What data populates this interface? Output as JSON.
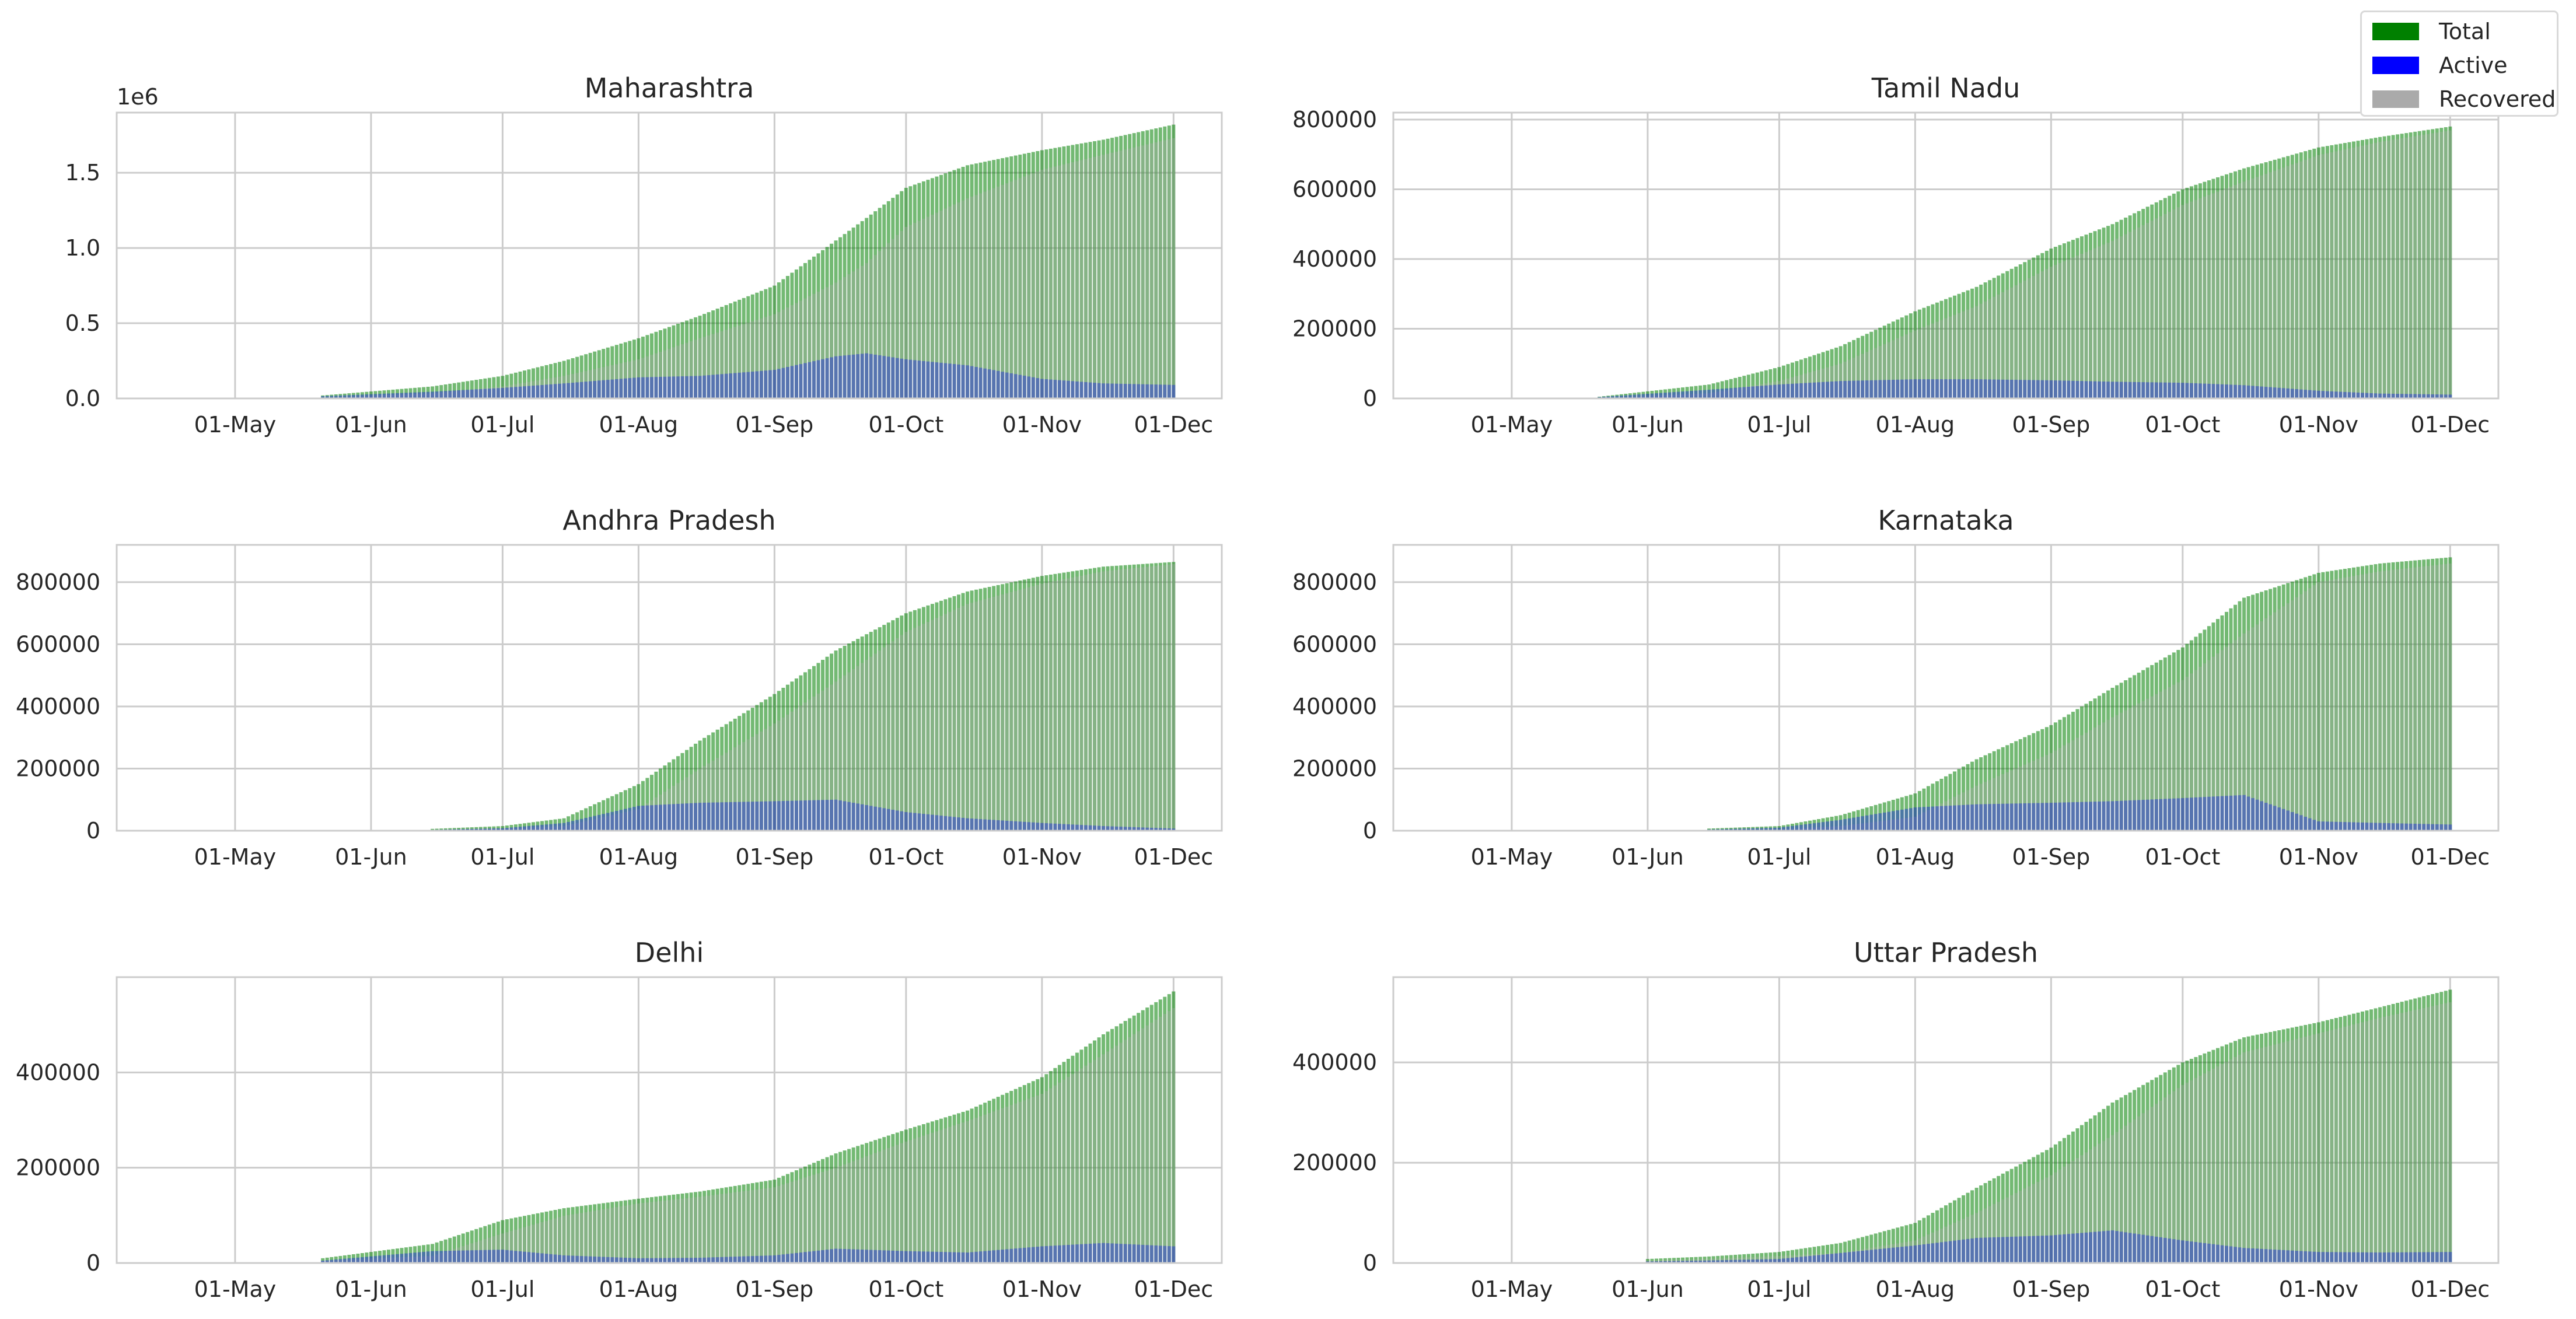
{
  "legend": {
    "items": [
      {
        "label": "Total",
        "color": "#008000"
      },
      {
        "label": "Active",
        "color": "#0000ff"
      },
      {
        "label": "Recovered",
        "color": "#aaaaaa"
      }
    ]
  },
  "chart_data": [
    {
      "type": "bar",
      "title": "Maharashtra",
      "offset_text": "1e6",
      "x_tick_labels": [
        "01-May",
        "01-Jun",
        "01-Jul",
        "01-Aug",
        "01-Sep",
        "01-Oct",
        "01-Nov",
        "01-Dec"
      ],
      "y_tick_labels": [
        "0.0",
        "0.5",
        "1.0",
        "1.5"
      ],
      "y_tick_values": [
        0,
        500000,
        1000000,
        1500000
      ],
      "ylim": [
        0,
        1900000
      ],
      "grid": true,
      "x_dates": [
        "2020-05-21",
        "2020-06-15",
        "2020-07-01",
        "2020-07-15",
        "2020-08-01",
        "2020-08-15",
        "2020-09-01",
        "2020-09-15",
        "2020-09-22",
        "2020-10-01",
        "2020-10-15",
        "2020-11-01",
        "2020-11-15",
        "2020-12-01"
      ],
      "series": [
        {
          "name": "Total",
          "values": [
            20000,
            80000,
            150000,
            250000,
            400000,
            550000,
            750000,
            1050000,
            1200000,
            1400000,
            1550000,
            1650000,
            1720000,
            1820000
          ]
        },
        {
          "name": "Active",
          "values": [
            15000,
            45000,
            70000,
            100000,
            140000,
            150000,
            190000,
            280000,
            300000,
            260000,
            220000,
            130000,
            100000,
            90000
          ]
        },
        {
          "name": "Recovered",
          "values": [
            5000,
            35000,
            80000,
            150000,
            260000,
            400000,
            560000,
            770000,
            900000,
            1140000,
            1330000,
            1520000,
            1620000,
            1730000
          ]
        }
      ]
    },
    {
      "type": "bar",
      "title": "Tamil Nadu",
      "offset_text": "",
      "x_tick_labels": [
        "01-May",
        "01-Jun",
        "01-Jul",
        "01-Aug",
        "01-Sep",
        "01-Oct",
        "01-Nov",
        "01-Dec"
      ],
      "y_tick_labels": [
        "0",
        "200000",
        "400000",
        "600000",
        "800000"
      ],
      "y_tick_values": [
        0,
        200000,
        400000,
        600000,
        800000
      ],
      "ylim": [
        0,
        820000
      ],
      "grid": true,
      "x_dates": [
        "2020-05-21",
        "2020-06-15",
        "2020-07-01",
        "2020-07-15",
        "2020-08-01",
        "2020-08-15",
        "2020-09-01",
        "2020-09-15",
        "2020-10-01",
        "2020-10-15",
        "2020-11-01",
        "2020-11-15",
        "2020-12-01"
      ],
      "series": [
        {
          "name": "Total",
          "values": [
            5000,
            40000,
            90000,
            150000,
            250000,
            320000,
            430000,
            500000,
            600000,
            660000,
            720000,
            750000,
            780000
          ]
        },
        {
          "name": "Active",
          "values": [
            4000,
            25000,
            40000,
            50000,
            55000,
            55000,
            52000,
            48000,
            45000,
            38000,
            22000,
            14000,
            11000
          ]
        },
        {
          "name": "Recovered",
          "values": [
            1000,
            15000,
            50000,
            100000,
            195000,
            265000,
            378000,
            452000,
            555000,
            622000,
            698000,
            736000,
            769000
          ]
        }
      ]
    },
    {
      "type": "bar",
      "title": "Andhra Pradesh",
      "offset_text": "",
      "x_tick_labels": [
        "01-May",
        "01-Jun",
        "01-Jul",
        "01-Aug",
        "01-Sep",
        "01-Oct",
        "01-Nov",
        "01-Dec"
      ],
      "y_tick_labels": [
        "0",
        "200000",
        "400000",
        "600000",
        "800000"
      ],
      "y_tick_values": [
        0,
        200000,
        400000,
        600000,
        800000
      ],
      "ylim": [
        0,
        920000
      ],
      "grid": true,
      "x_dates": [
        "2020-06-15",
        "2020-07-01",
        "2020-07-15",
        "2020-08-01",
        "2020-08-15",
        "2020-09-01",
        "2020-09-15",
        "2020-10-01",
        "2020-10-15",
        "2020-11-01",
        "2020-11-15",
        "2020-12-01"
      ],
      "series": [
        {
          "name": "Total",
          "values": [
            6000,
            15000,
            40000,
            150000,
            290000,
            440000,
            580000,
            700000,
            770000,
            820000,
            850000,
            865000
          ]
        },
        {
          "name": "Active",
          "values": [
            3000,
            8000,
            25000,
            80000,
            90000,
            95000,
            100000,
            60000,
            40000,
            25000,
            15000,
            7000
          ]
        },
        {
          "name": "Recovered",
          "values": [
            3000,
            7000,
            15000,
            70000,
            200000,
            345000,
            480000,
            640000,
            730000,
            795000,
            835000,
            858000
          ]
        }
      ]
    },
    {
      "type": "bar",
      "title": "Karnataka",
      "offset_text": "",
      "x_tick_labels": [
        "01-May",
        "01-Jun",
        "01-Jul",
        "01-Aug",
        "01-Sep",
        "01-Oct",
        "01-Nov",
        "01-Dec"
      ],
      "y_tick_labels": [
        "0",
        "200000",
        "400000",
        "600000",
        "800000"
      ],
      "y_tick_values": [
        0,
        200000,
        400000,
        600000,
        800000
      ],
      "ylim": [
        0,
        920000
      ],
      "grid": true,
      "x_dates": [
        "2020-06-15",
        "2020-07-01",
        "2020-07-15",
        "2020-08-01",
        "2020-08-15",
        "2020-09-01",
        "2020-09-15",
        "2020-10-01",
        "2020-10-15",
        "2020-11-01",
        "2020-11-15",
        "2020-12-01"
      ],
      "series": [
        {
          "name": "Total",
          "values": [
            7000,
            15000,
            50000,
            120000,
            230000,
            340000,
            460000,
            590000,
            750000,
            830000,
            860000,
            880000
          ]
        },
        {
          "name": "Active",
          "values": [
            4000,
            10000,
            35000,
            75000,
            85000,
            90000,
            95000,
            105000,
            115000,
            30000,
            25000,
            20000
          ]
        },
        {
          "name": "Recovered",
          "values": [
            3000,
            5000,
            15000,
            45000,
            145000,
            250000,
            365000,
            485000,
            635000,
            800000,
            835000,
            860000
          ]
        }
      ]
    },
    {
      "type": "bar",
      "title": "Delhi",
      "offset_text": "",
      "x_tick_labels": [
        "01-May",
        "01-Jun",
        "01-Jul",
        "01-Aug",
        "01-Sep",
        "01-Oct",
        "01-Nov",
        "01-Dec"
      ],
      "y_tick_labels": [
        "0",
        "200000",
        "400000"
      ],
      "y_tick_values": [
        0,
        200000,
        400000
      ],
      "ylim": [
        0,
        600000
      ],
      "grid": true,
      "x_dates": [
        "2020-05-21",
        "2020-06-15",
        "2020-07-01",
        "2020-07-15",
        "2020-08-01",
        "2020-08-15",
        "2020-09-01",
        "2020-09-15",
        "2020-10-01",
        "2020-10-15",
        "2020-11-01",
        "2020-11-15",
        "2020-12-01"
      ],
      "series": [
        {
          "name": "Total",
          "values": [
            10000,
            40000,
            90000,
            115000,
            135000,
            150000,
            175000,
            230000,
            280000,
            320000,
            390000,
            480000,
            570000
          ]
        },
        {
          "name": "Active",
          "values": [
            5000,
            25000,
            28000,
            16000,
            10000,
            11000,
            16000,
            30000,
            25000,
            22000,
            35000,
            42000,
            35000
          ]
        },
        {
          "name": "Recovered",
          "values": [
            5000,
            15000,
            62000,
            99000,
            125000,
            139000,
            159000,
            200000,
            255000,
            298000,
            355000,
            438000,
            535000
          ]
        }
      ]
    },
    {
      "type": "bar",
      "title": "Uttar Pradesh",
      "offset_text": "",
      "x_tick_labels": [
        "01-May",
        "01-Jun",
        "01-Jul",
        "01-Aug",
        "01-Sep",
        "01-Oct",
        "01-Nov",
        "01-Dec"
      ],
      "y_tick_labels": [
        "0",
        "200000",
        "400000"
      ],
      "y_tick_values": [
        0,
        200000,
        400000
      ],
      "ylim": [
        0,
        570000
      ],
      "grid": true,
      "x_dates": [
        "2020-06-01",
        "2020-06-15",
        "2020-07-01",
        "2020-07-15",
        "2020-08-01",
        "2020-08-15",
        "2020-09-01",
        "2020-09-15",
        "2020-10-01",
        "2020-10-15",
        "2020-11-01",
        "2020-11-15",
        "2020-12-01"
      ],
      "series": [
        {
          "name": "Total",
          "values": [
            8000,
            13000,
            22000,
            40000,
            80000,
            150000,
            230000,
            320000,
            400000,
            450000,
            480000,
            510000,
            545000
          ]
        },
        {
          "name": "Active",
          "values": [
            3000,
            5000,
            8000,
            20000,
            35000,
            50000,
            55000,
            65000,
            45000,
            30000,
            22000,
            21000,
            22000
          ]
        },
        {
          "name": "Recovered",
          "values": [
            5000,
            8000,
            14000,
            20000,
            45000,
            100000,
            175000,
            255000,
            355000,
            420000,
            458000,
            489000,
            520000
          ]
        }
      ]
    }
  ]
}
